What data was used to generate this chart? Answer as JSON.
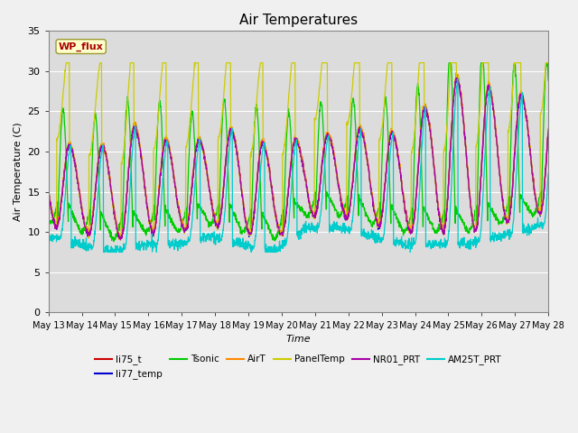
{
  "title": "Air Temperatures",
  "xlabel": "Time",
  "ylabel": "Air Temperature (C)",
  "ylim": [
    0,
    35
  ],
  "yticks": [
    0,
    5,
    10,
    15,
    20,
    25,
    30,
    35
  ],
  "xtick_labels": [
    "May 13",
    "May 14",
    "May 15",
    "May 16",
    "May 17",
    "May 18",
    "May 19",
    "May 20",
    "May 21",
    "May 22",
    "May 23",
    "May 24",
    "May 25",
    "May 26",
    "May 27",
    "May 28"
  ],
  "plot_bg_color": "#dcdcdc",
  "fig_bg_color": "#f0f0f0",
  "series": [
    {
      "name": "li75_t",
      "color": "#cc0000"
    },
    {
      "name": "li77_temp",
      "color": "#0000cc"
    },
    {
      "name": "Tsonic",
      "color": "#00cc00"
    },
    {
      "name": "AirT",
      "color": "#ff8800"
    },
    {
      "name": "PanelTemp",
      "color": "#cccc00"
    },
    {
      "name": "NR01_PRT",
      "color": "#aa00aa"
    },
    {
      "name": "AM25T_PRT",
      "color": "#00cccc"
    }
  ],
  "annotation_text": "WP_flux",
  "annotation_color": "#aa0000",
  "annotation_bg": "#ffffcc",
  "annotation_border": "#999933",
  "n_days": 15.5,
  "n_points": 2000,
  "peak_temps": [
    22,
    20,
    21,
    24,
    20,
    22,
    23,
    20,
    22,
    22,
    23,
    22,
    27,
    30,
    27,
    27
  ],
  "night_temps": [
    11,
    10,
    9,
    10,
    10,
    11,
    10,
    9,
    12,
    12,
    11,
    10,
    10,
    10,
    11,
    12
  ]
}
